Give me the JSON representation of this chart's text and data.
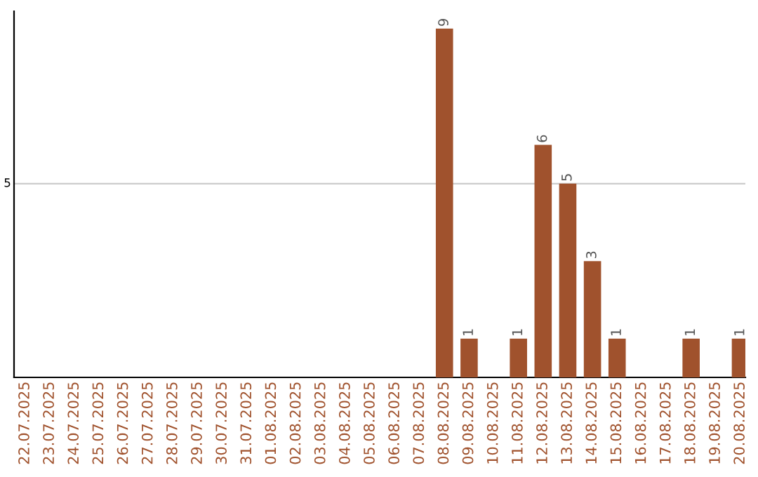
{
  "chart_data": {
    "type": "bar",
    "categories": [
      "22.07.2025",
      "23.07.2025",
      "24.07.2025",
      "25.07.2025",
      "26.07.2025",
      "27.07.2025",
      "28.07.2025",
      "29.07.2025",
      "30.07.2025",
      "31.07.2025",
      "01.08.2025",
      "02.08.2025",
      "03.08.2025",
      "04.08.2025",
      "05.08.2025",
      "06.08.2025",
      "07.08.2025",
      "08.08.2025",
      "09.08.2025",
      "10.08.2025",
      "11.08.2025",
      "12.08.2025",
      "13.08.2025",
      "14.08.2025",
      "15.08.2025",
      "16.08.2025",
      "17.08.2025",
      "18.08.2025",
      "19.08.2025",
      "20.08.2025"
    ],
    "values": [
      null,
      null,
      null,
      null,
      null,
      null,
      null,
      null,
      null,
      null,
      null,
      null,
      null,
      null,
      null,
      null,
      null,
      9,
      1,
      null,
      1,
      6,
      5,
      3,
      1,
      null,
      null,
      1,
      null,
      1
    ],
    "data_labels": true,
    "color": "#a0522d",
    "ref_lines": [
      {
        "axis": "y",
        "value": 5,
        "label": "5",
        "color": "#cccccc"
      }
    ]
  }
}
